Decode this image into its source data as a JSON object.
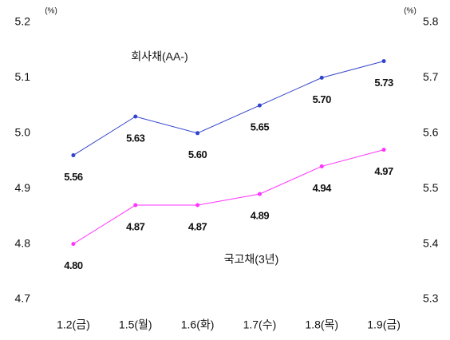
{
  "chart_data": {
    "type": "line",
    "y_label": "(%)",
    "y2_label": "(%)",
    "categories": [
      "1.2(금)",
      "1.5(월)",
      "1.6(화)",
      "1.7(수)",
      "1.8(목)",
      "1.9(금)"
    ],
    "series": [
      {
        "name": "회사채(AA-)",
        "color": "#3344cc",
        "axis": "y2",
        "values": [
          5.56,
          5.63,
          5.6,
          5.65,
          5.7,
          5.73
        ],
        "value_labels": [
          "5.56",
          "5.63",
          "5.60",
          "5.65",
          "5.70",
          "5.73"
        ]
      },
      {
        "name": "국고채(3년)",
        "color": "#ff33ff",
        "values": [
          4.8,
          4.87,
          4.87,
          4.89,
          4.94,
          4.97
        ],
        "value_labels": [
          "4.80",
          "4.87",
          "4.87",
          "4.89",
          "4.94",
          "4.97"
        ]
      }
    ],
    "ylim": [
      4.7,
      5.2
    ],
    "yticks": [
      4.7,
      {
        "value": 4.8,
        "label": "4.8"
      },
      {
        "value": 4.9,
        "label": "4.9"
      },
      {
        "value": 5,
        "label": "5.0"
      },
      5.1,
      5.2
    ],
    "y2lim": [
      5.3,
      5.8
    ],
    "y2ticks": [
      5.3,
      5.4,
      5.5,
      5.6,
      5.7,
      5.8
    ],
    "grid": false
  }
}
